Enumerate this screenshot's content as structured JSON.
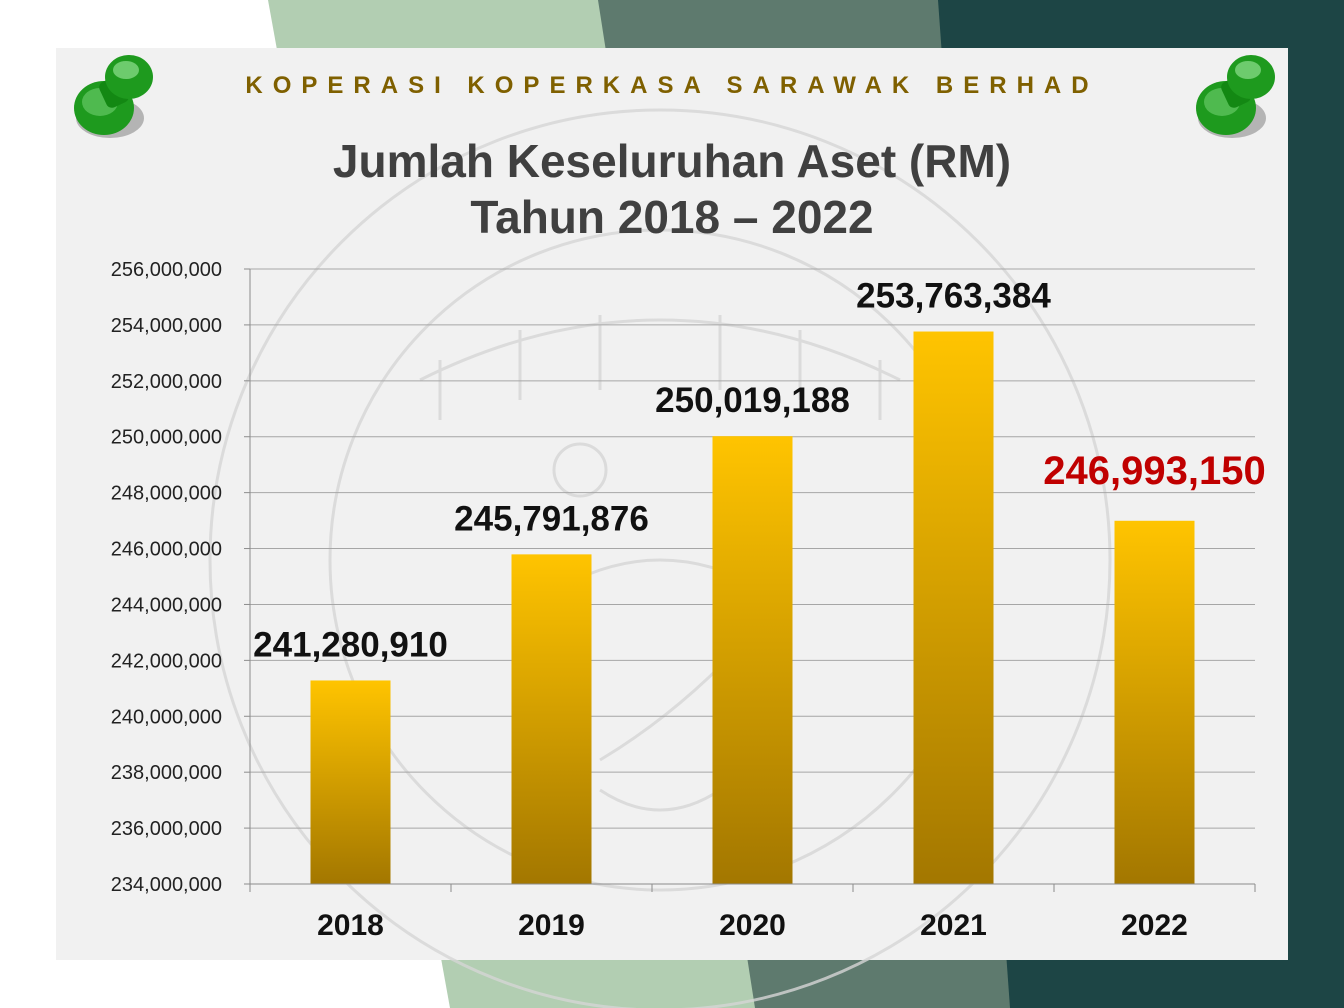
{
  "header": {
    "organization": "KOPERASI KOPERKASA SARAWAK BERHAD",
    "title_line1": "Jumlah Keseluruhan Aset (RM)",
    "title_line2": "Tahun 2018 – 2022"
  },
  "colors": {
    "bar_top": "#ffc400",
    "bar_bottom": "#a37700",
    "label_default": "#111111",
    "label_highlight": "#c00000",
    "org_text": "#7f6000",
    "title_text": "#404040",
    "stripe_light": "#b2ceb2",
    "stripe_mid": "#5e7a6e",
    "stripe_dark": "#1d4545",
    "pin": "#1e9a1e"
  },
  "decor": {
    "pin_left": "green-push-pin",
    "pin_right": "green-push-pin",
    "watermark": "koperkasa-seal"
  },
  "chart_data": {
    "type": "bar",
    "title": "Jumlah Keseluruhan Aset (RM) Tahun 2018 – 2022",
    "categories": [
      "2018",
      "2019",
      "2020",
      "2021",
      "2022"
    ],
    "values": [
      241280910,
      245791876,
      250019188,
      253763384,
      246993150
    ],
    "value_labels": [
      "241,280,910",
      "245,791,876",
      "250,019,188",
      "253,763,384",
      "246,993,150"
    ],
    "highlight_index": 4,
    "ylim": [
      234000000,
      256000000
    ],
    "y_ticks": [
      234000000,
      236000000,
      238000000,
      240000000,
      242000000,
      244000000,
      246000000,
      248000000,
      250000000,
      252000000,
      254000000,
      256000000
    ],
    "y_tick_labels": [
      "234,000,000",
      "236,000,000",
      "238,000,000",
      "240,000,000",
      "242,000,000",
      "244,000,000",
      "246,000,000",
      "248,000,000",
      "250,000,000",
      "252,000,000",
      "254,000,000",
      "256,000,000"
    ],
    "grid": true,
    "legend": "none",
    "xlabel": "",
    "ylabel": ""
  }
}
